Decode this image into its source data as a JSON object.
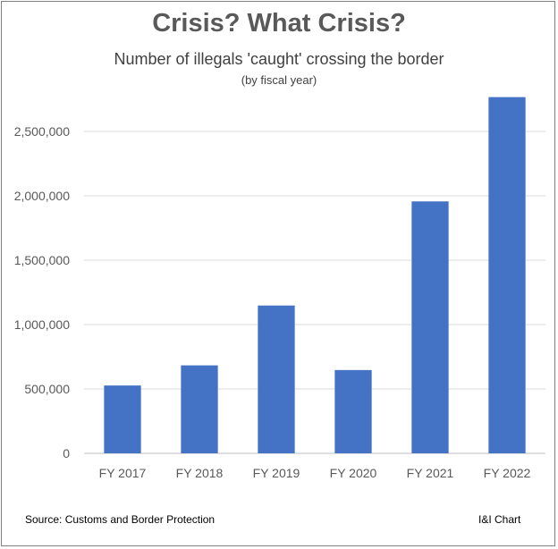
{
  "title": "Crisis? What Crisis?",
  "subtitle": "Number of illegals 'caught' crossing the border",
  "subtitle_note": "(by fiscal year)",
  "source": "Source: Customs and Border Protection",
  "credit": "I&I Chart",
  "bar_color": "#4472c4",
  "chart_data": {
    "type": "bar",
    "title": "Crisis? What Crisis?",
    "categories": [
      "FY 2017",
      "FY 2018",
      "FY 2019",
      "FY 2020",
      "FY 2021",
      "FY 2022"
    ],
    "values": [
      526901,
      683178,
      1148024,
      646822,
      1956519,
      2766582
    ],
    "ylim": [
      0,
      3000000
    ],
    "yticks": [
      0,
      500000,
      1000000,
      1500000,
      2000000,
      2500000
    ],
    "ytick_labels": [
      "0",
      "500,000",
      "1,000,000",
      "1,500,000",
      "2,000,000",
      "2,500,000"
    ],
    "xlabel": "",
    "ylabel": "",
    "grid": true
  }
}
